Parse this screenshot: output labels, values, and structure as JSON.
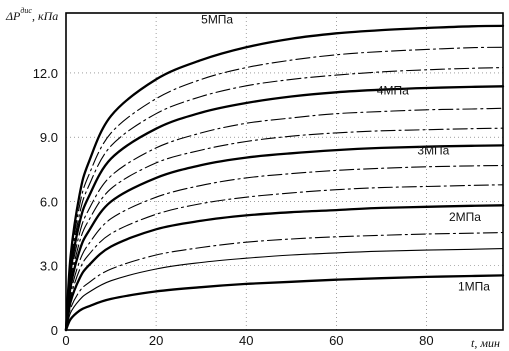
{
  "chart_data": {
    "type": "line",
    "title": "",
    "ylabel": "ΔP<sup>дис</sup>, кПа",
    "ylabel_main": "ΔP",
    "ylabel_sup": "дис",
    "ylabel_unit": ", кПа",
    "xlabel": "t, мин",
    "xlim": [
      0,
      97
    ],
    "ylim": [
      0,
      14.8
    ],
    "xticks": [
      "0",
      "20",
      "40",
      "60",
      "80"
    ],
    "xtick_values": [
      0,
      20,
      40,
      60,
      80
    ],
    "yticks": [
      "0",
      "3.0",
      "6.0",
      "9.0",
      "12.0"
    ],
    "ytick_values": [
      0,
      3,
      6,
      9,
      12
    ],
    "grid": true,
    "series": [
      {
        "name": "1 МПа",
        "style": "solid",
        "x": [
          0,
          1,
          3,
          5,
          10,
          20,
          30,
          40,
          50,
          60,
          70,
          80,
          90,
          97
        ],
        "y": [
          0,
          0.5,
          0.9,
          1.1,
          1.45,
          1.8,
          2.0,
          2.15,
          2.25,
          2.35,
          2.42,
          2.48,
          2.52,
          2.55
        ]
      },
      {
        "name": "",
        "style": "solid-thin",
        "x": [
          0,
          1,
          3,
          5,
          10,
          20,
          30,
          40,
          50,
          60,
          70,
          80,
          90,
          97
        ],
        "y": [
          0,
          0.8,
          1.4,
          1.75,
          2.3,
          2.85,
          3.15,
          3.35,
          3.5,
          3.6,
          3.68,
          3.73,
          3.77,
          3.8
        ]
      },
      {
        "name": "",
        "style": "dashdot",
        "x": [
          0,
          1,
          3,
          5,
          10,
          20,
          30,
          40,
          50,
          60,
          70,
          80,
          90,
          97
        ],
        "y": [
          0,
          1.0,
          1.8,
          2.2,
          2.85,
          3.5,
          3.85,
          4.1,
          4.25,
          4.35,
          4.42,
          4.48,
          4.52,
          4.55
        ]
      },
      {
        "name": "2 МПа",
        "style": "solid",
        "x": [
          0,
          1,
          3,
          5,
          10,
          20,
          30,
          40,
          50,
          60,
          70,
          80,
          90,
          97
        ],
        "y": [
          0,
          1.3,
          2.4,
          3.0,
          3.9,
          4.7,
          5.1,
          5.35,
          5.5,
          5.6,
          5.7,
          5.75,
          5.8,
          5.82
        ]
      },
      {
        "name": "",
        "style": "dashdot",
        "x": [
          0,
          1,
          3,
          5,
          10,
          20,
          30,
          40,
          50,
          60,
          70,
          80,
          90,
          97
        ],
        "y": [
          0,
          1.5,
          2.8,
          3.5,
          4.5,
          5.4,
          5.9,
          6.2,
          6.4,
          6.55,
          6.65,
          6.7,
          6.75,
          6.78
        ]
      },
      {
        "name": "",
        "style": "dashdot",
        "x": [
          0,
          1,
          3,
          5,
          10,
          20,
          30,
          40,
          50,
          60,
          70,
          80,
          90,
          97
        ],
        "y": [
          0,
          1.7,
          3.2,
          4.0,
          5.2,
          6.2,
          6.75,
          7.1,
          7.3,
          7.45,
          7.55,
          7.62,
          7.66,
          7.68
        ]
      },
      {
        "name": "3 МПа",
        "style": "solid",
        "x": [
          0,
          1,
          3,
          5,
          10,
          20,
          30,
          40,
          50,
          60,
          70,
          80,
          90,
          97
        ],
        "y": [
          0,
          2.0,
          3.7,
          4.6,
          6.0,
          7.1,
          7.7,
          8.05,
          8.25,
          8.4,
          8.5,
          8.56,
          8.6,
          8.62
        ]
      },
      {
        "name": "",
        "style": "dashdot",
        "x": [
          0,
          1,
          3,
          5,
          10,
          20,
          30,
          40,
          50,
          60,
          70,
          80,
          90,
          97
        ],
        "y": [
          0,
          2.2,
          4.1,
          5.1,
          6.6,
          7.8,
          8.4,
          8.8,
          9.05,
          9.2,
          9.3,
          9.35,
          9.4,
          9.42
        ]
      },
      {
        "name": "",
        "style": "dashdot",
        "x": [
          0,
          1,
          3,
          5,
          10,
          20,
          30,
          40,
          50,
          60,
          70,
          80,
          90,
          97
        ],
        "y": [
          0,
          2.4,
          4.5,
          5.6,
          7.2,
          8.5,
          9.2,
          9.65,
          9.9,
          10.1,
          10.2,
          10.28,
          10.32,
          10.35
        ]
      },
      {
        "name": "4 МПа",
        "style": "solid",
        "x": [
          0,
          1,
          3,
          5,
          10,
          20,
          30,
          40,
          50,
          60,
          70,
          80,
          90,
          97
        ],
        "y": [
          0,
          2.7,
          5.0,
          6.2,
          8.0,
          9.4,
          10.15,
          10.6,
          10.9,
          11.1,
          11.22,
          11.3,
          11.35,
          11.38
        ]
      },
      {
        "name": "",
        "style": "dashdot",
        "x": [
          0,
          1,
          3,
          5,
          10,
          20,
          30,
          40,
          50,
          60,
          70,
          80,
          90,
          97
        ],
        "y": [
          0,
          2.9,
          5.4,
          6.7,
          8.6,
          10.1,
          10.9,
          11.4,
          11.7,
          11.9,
          12.05,
          12.15,
          12.22,
          12.25
        ]
      },
      {
        "name": "",
        "style": "dashdot",
        "x": [
          0,
          1,
          3,
          5,
          10,
          20,
          30,
          40,
          50,
          60,
          70,
          80,
          90,
          97
        ],
        "y": [
          0,
          3.1,
          5.8,
          7.2,
          9.2,
          10.8,
          11.7,
          12.25,
          12.6,
          12.85,
          13.0,
          13.1,
          13.18,
          13.2
        ]
      },
      {
        "name": "5 МПа",
        "style": "solid",
        "x": [
          0,
          1,
          3,
          5,
          10,
          20,
          30,
          40,
          50,
          60,
          70,
          80,
          90,
          97
        ],
        "y": [
          0,
          3.4,
          6.3,
          7.8,
          10.0,
          11.7,
          12.6,
          13.2,
          13.6,
          13.85,
          14.0,
          14.1,
          14.18,
          14.2
        ]
      }
    ],
    "curve_labels": [
      {
        "text": "5МПа",
        "x": 30,
        "y": 14.3
      },
      {
        "text": "4МПа",
        "x": 69,
        "y": 11.0
      },
      {
        "text": "3МПа",
        "x": 78,
        "y": 8.2
      },
      {
        "text": "2МПа",
        "x": 85,
        "y": 5.1
      },
      {
        "text": "1МПа",
        "x": 87,
        "y": 1.85
      }
    ]
  }
}
